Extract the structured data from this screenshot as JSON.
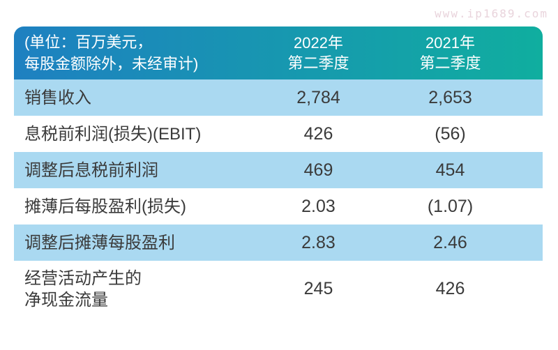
{
  "watermark": "www.ip1689.com",
  "header": {
    "unit_note_line1": "(单位：百万美元，",
    "unit_note_line2": "每股金额除外，未经审计)",
    "col_2022_line1": "2022年",
    "col_2022_line2": "第二季度",
    "col_2021_line1": "2021年",
    "col_2021_line2": "第二季度"
  },
  "rows": [
    {
      "label": "销售收入",
      "v2022": "2,784",
      "v2021": "2,653"
    },
    {
      "label": "息税前利润(损失)(EBIT)",
      "v2022": "426",
      "v2021": "(56)"
    },
    {
      "label": "调整后息税前利润",
      "v2022": "469",
      "v2021": "454"
    },
    {
      "label": "摊薄后每股盈利(损失)",
      "v2022": "2.03",
      "v2021": "(1.07)"
    },
    {
      "label": "调整后摊薄每股盈利",
      "v2022": "2.83",
      "v2021": "2.46"
    },
    {
      "label": "经营活动产生的",
      "label2": "净现金流量",
      "v2022": "245",
      "v2021": "426"
    }
  ],
  "colors": {
    "header_gradient_start": "#1e80c1",
    "header_gradient_end": "#10ae9f",
    "row_alt_blue": "#aad9f1",
    "row_white": "#ffffff",
    "body_text": "#3a3a3a",
    "header_text": "#ffffff",
    "watermark_text": "#e9d4dc"
  }
}
